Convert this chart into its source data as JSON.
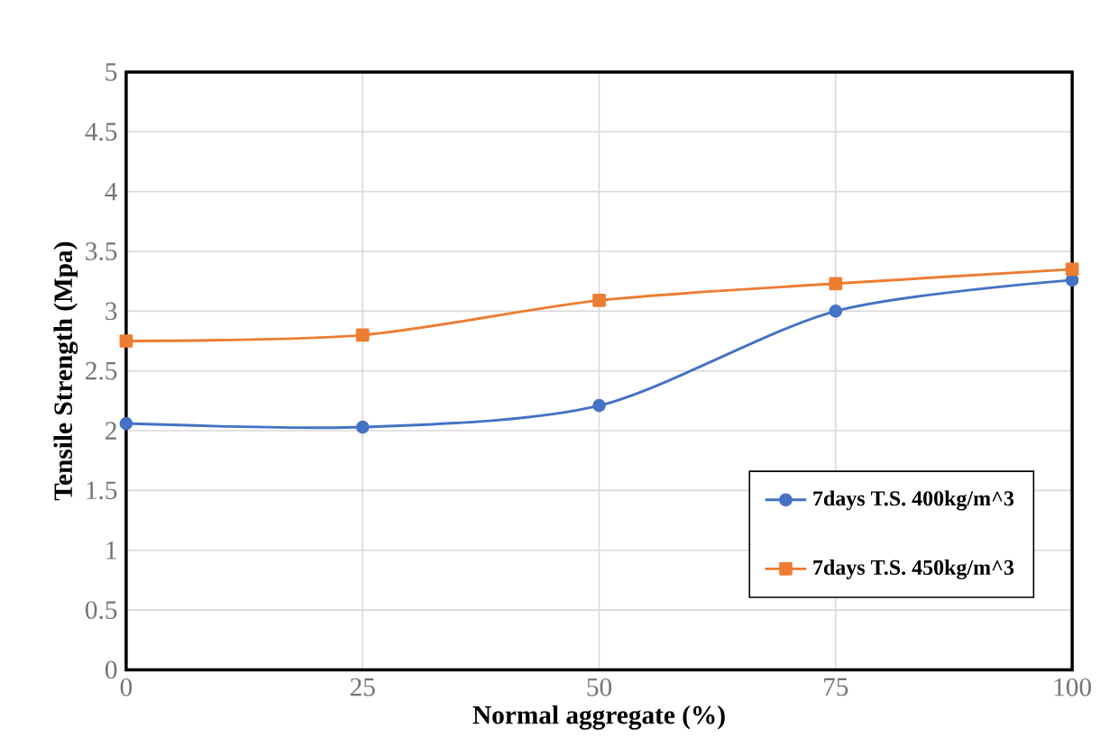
{
  "chart_data": {
    "type": "line",
    "xlabel": "Normal aggregate (%)",
    "ylabel": "Tensile Strength (Mpa)",
    "x": [
      0,
      25,
      50,
      75,
      100
    ],
    "series": [
      {
        "name": "7days T.S. 400kg/m^3",
        "color": "#4472c4",
        "marker": "circle",
        "values": [
          2.06,
          2.03,
          2.21,
          3.0,
          3.26
        ]
      },
      {
        "name": "7days T.S. 450kg/m^3",
        "color": "#ed7d31",
        "marker": "square",
        "values": [
          2.75,
          2.8,
          3.09,
          3.23,
          3.35
        ]
      }
    ],
    "xlim": [
      0,
      100
    ],
    "ylim": [
      0,
      5
    ],
    "xticks": [
      0,
      25,
      50,
      75,
      100
    ],
    "yticks": [
      0,
      0.5,
      1,
      1.5,
      2,
      2.5,
      3,
      3.5,
      4,
      4.5,
      5
    ],
    "grid": true,
    "legend": "bottom right",
    "line_style": "solid"
  }
}
